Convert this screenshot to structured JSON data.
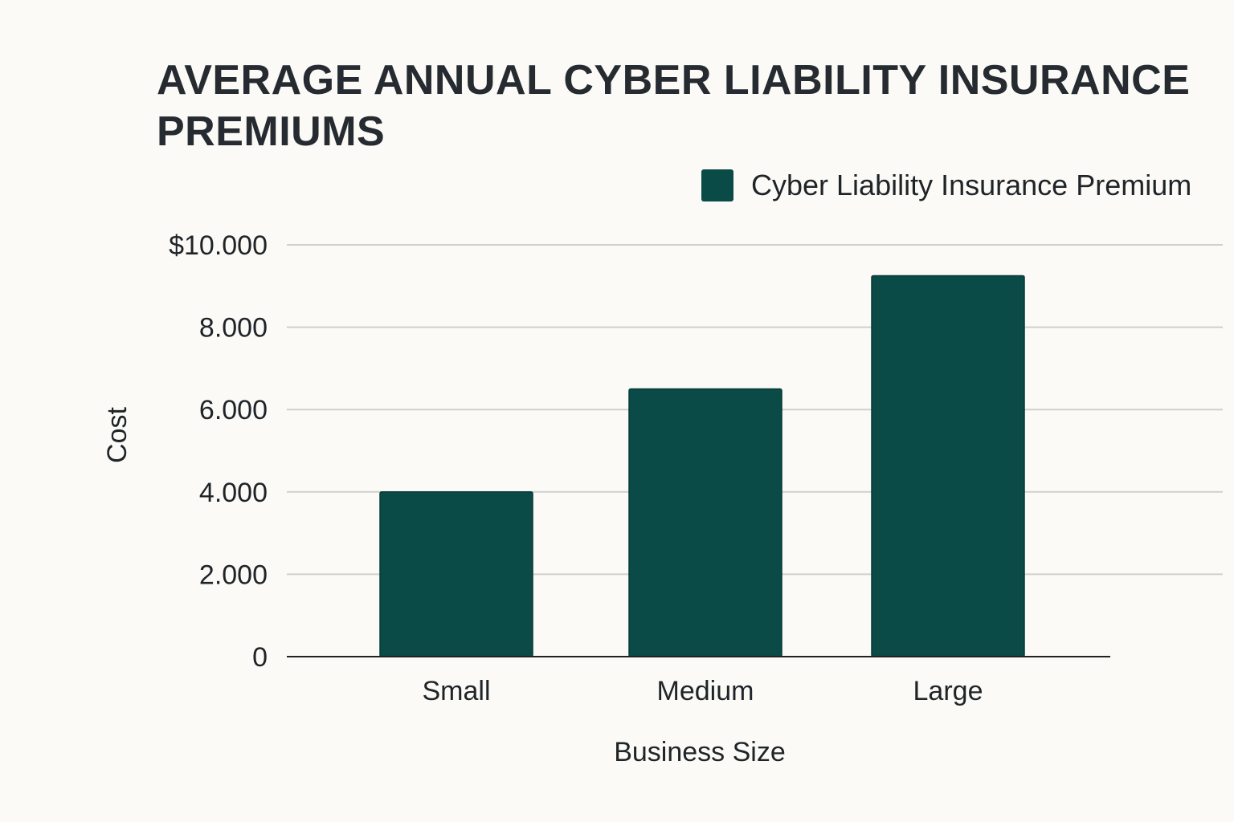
{
  "chart_data": {
    "type": "bar",
    "title": "AVERAGE ANNUAL CYBER LIABILITY INSURANCE PREMIUMS",
    "xlabel": "Business Size",
    "ylabel": "Cost",
    "categories": [
      "Small",
      "Medium",
      "Large"
    ],
    "series": [
      {
        "name": "Cyber Liability Insurance Premium",
        "values": [
          4000,
          6500,
          9250
        ],
        "color": "#0a4a47"
      }
    ],
    "ylim": [
      0,
      10000
    ],
    "yticks": [
      0,
      2000,
      4000,
      6000,
      8000,
      10000
    ],
    "ytick_labels": [
      "0",
      "2.000",
      "4.000",
      "6.000",
      "8.000",
      "$10.000"
    ],
    "grid": true,
    "legend_position": "top-right"
  }
}
